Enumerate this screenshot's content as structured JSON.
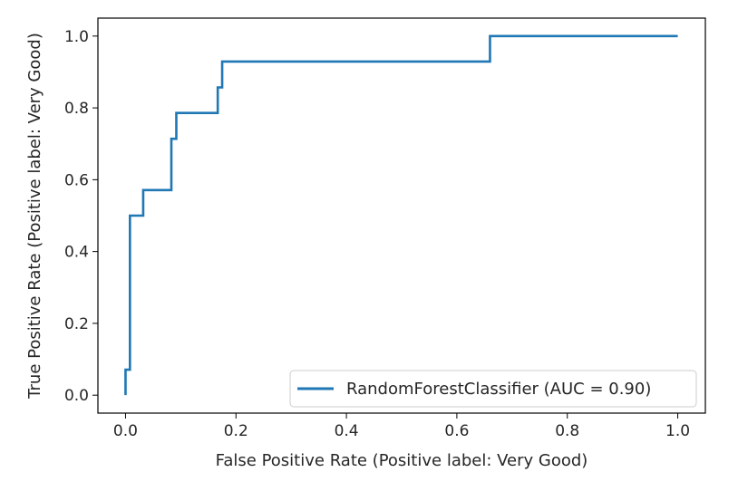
{
  "chart_data": {
    "type": "line",
    "title": "",
    "xlabel": "False Positive Rate (Positive label: Very Good)",
    "ylabel": "True Positive Rate (Positive label: Very Good)",
    "xlim": [
      -0.05,
      1.05
    ],
    "ylim": [
      -0.05,
      1.05
    ],
    "xticks": [
      "0.0",
      "0.2",
      "0.4",
      "0.6",
      "0.8",
      "1.0"
    ],
    "yticks": [
      "0.0",
      "0.2",
      "0.4",
      "0.6",
      "0.8",
      "1.0"
    ],
    "grid": false,
    "legend_position": "lower-right",
    "series": [
      {
        "name": "RandomForestClassifier (AUC = 0.90)",
        "color": "#1f77b4",
        "step": true,
        "x": [
          0.0,
          0.0,
          0.008,
          0.008,
          0.032,
          0.032,
          0.083,
          0.083,
          0.092,
          0.092,
          0.167,
          0.167,
          0.175,
          0.175,
          0.66,
          0.66,
          1.0
        ],
        "y": [
          0.0,
          0.071,
          0.071,
          0.5,
          0.5,
          0.571,
          0.571,
          0.714,
          0.714,
          0.786,
          0.786,
          0.857,
          0.857,
          0.929,
          0.929,
          1.0,
          1.0
        ]
      }
    ]
  }
}
